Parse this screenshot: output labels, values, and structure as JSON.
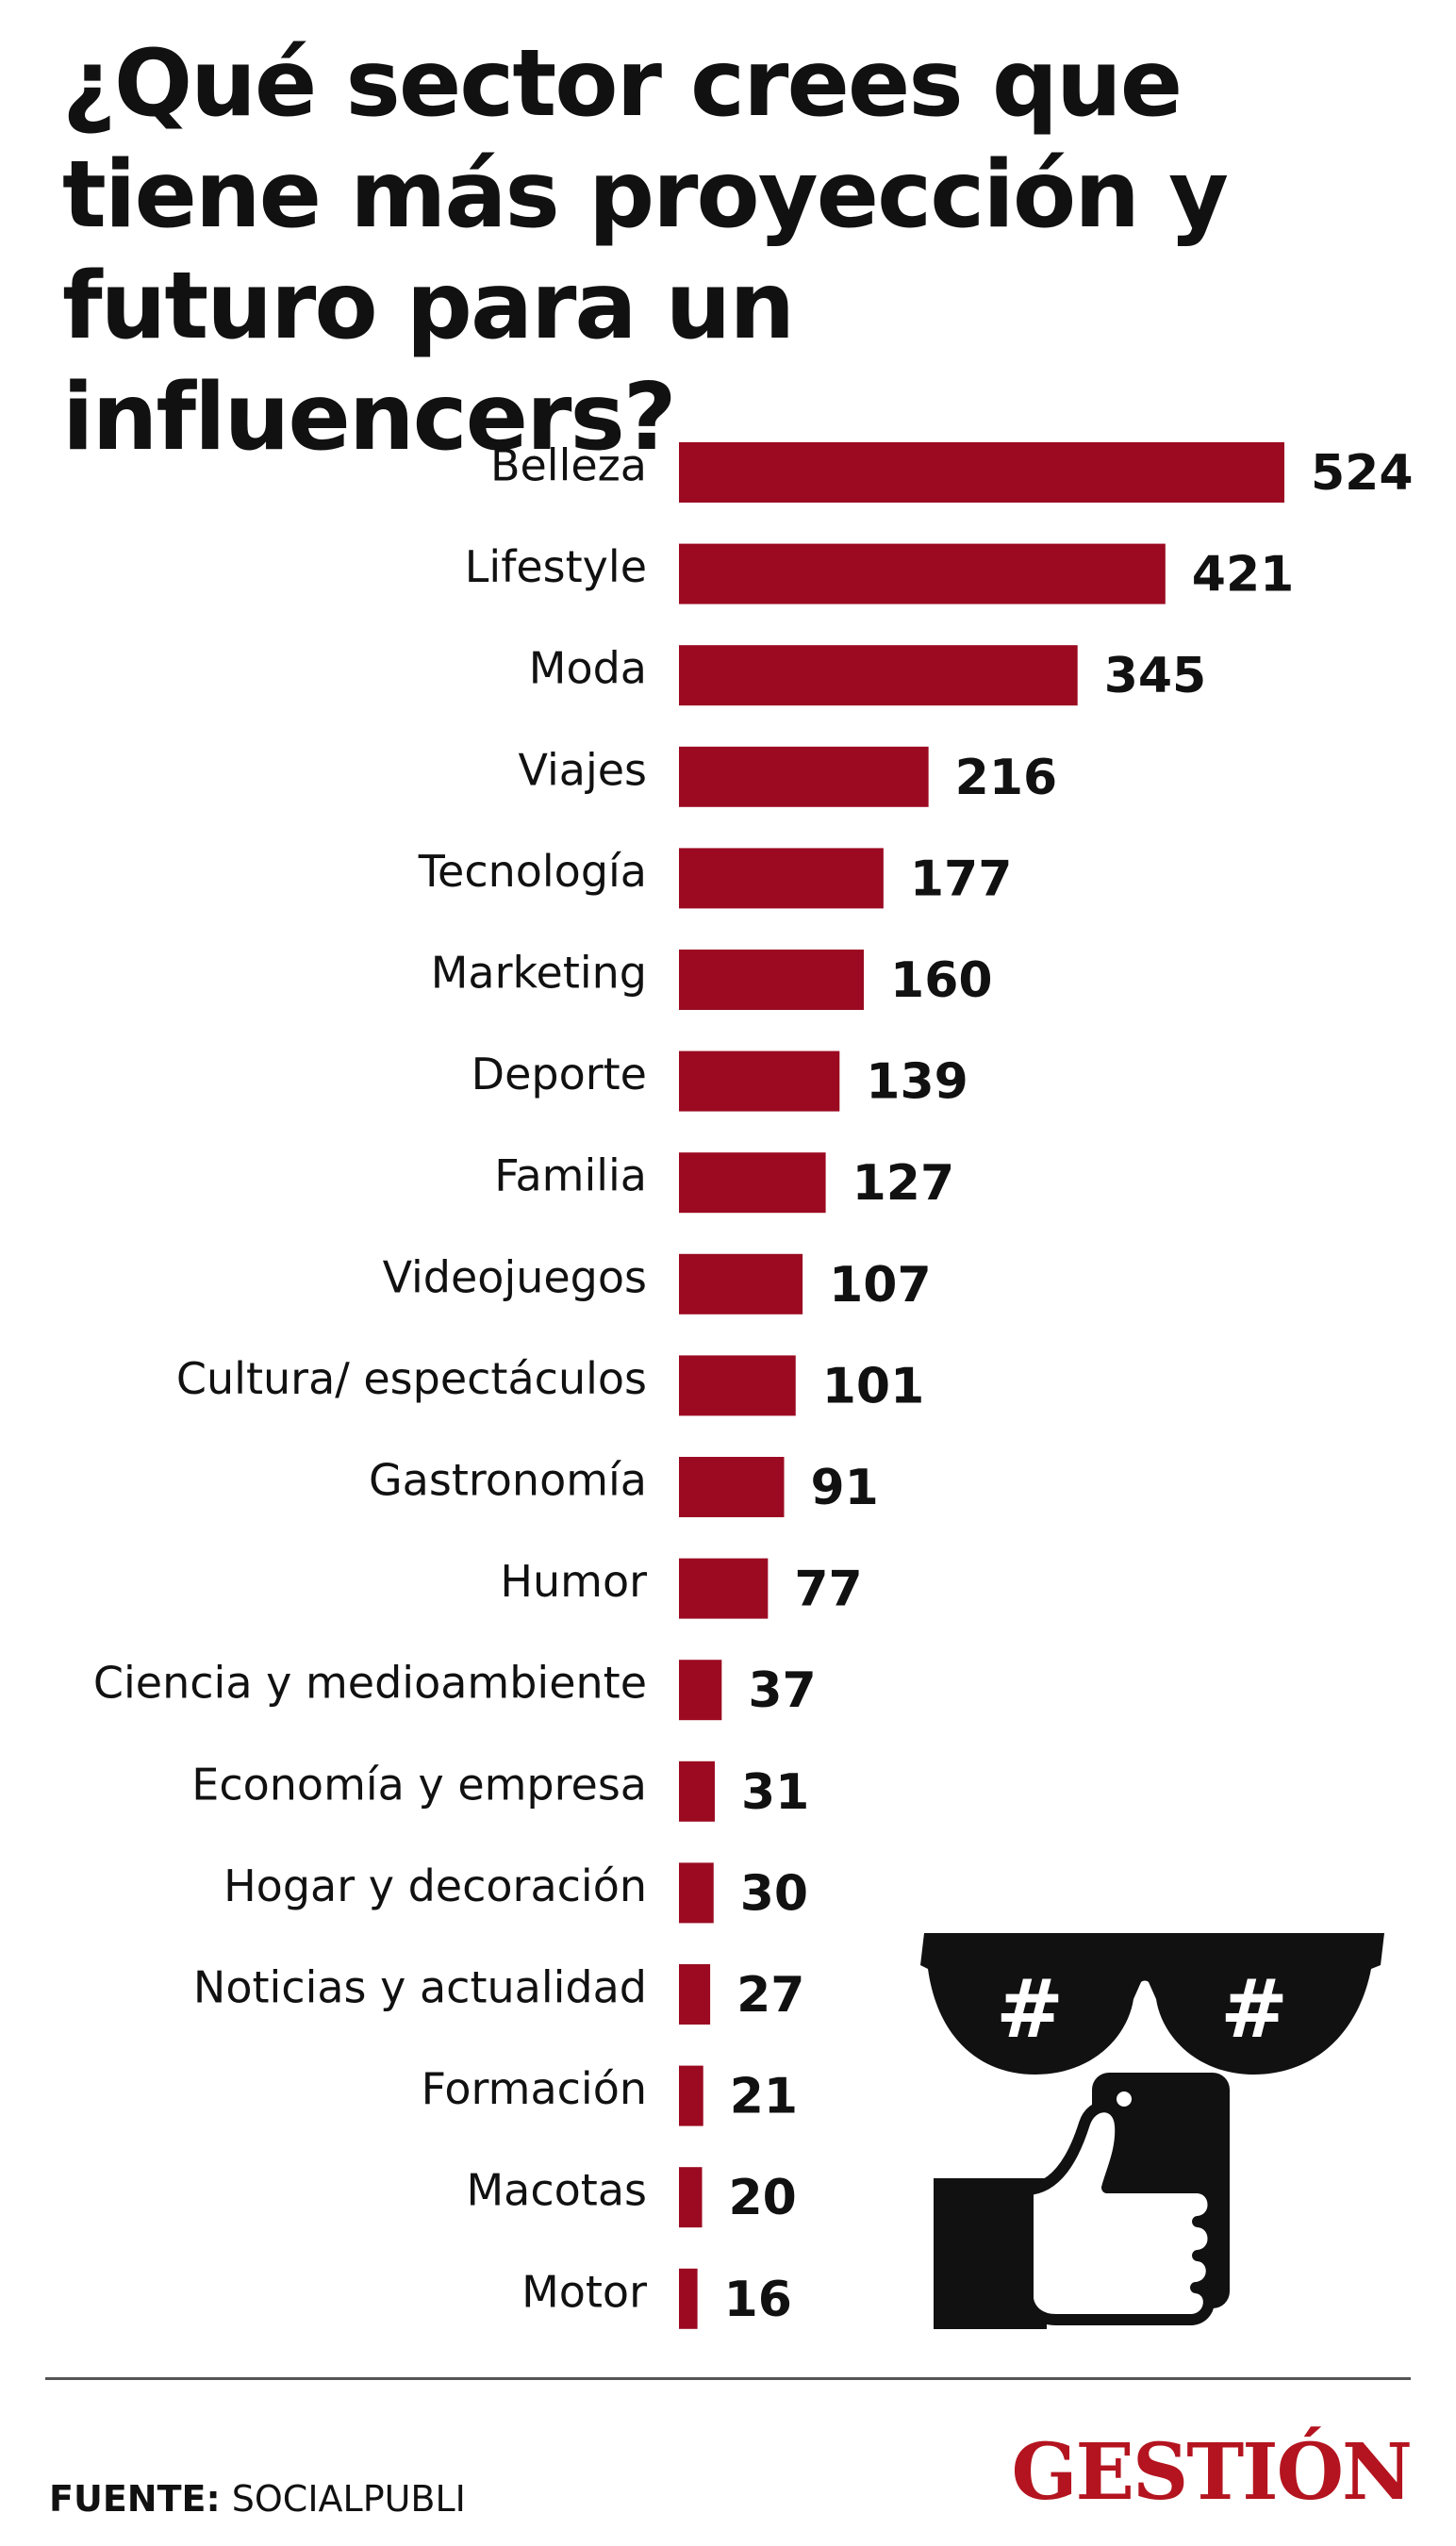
{
  "title": "¿Qué sector crees que tiene más proyección y futuro para un influencers?",
  "colors": {
    "bar": "#9b0a21",
    "brand": "#b4141f",
    "text": "#111111"
  },
  "chart_data": {
    "type": "bar",
    "orientation": "horizontal",
    "categories": [
      "Belleza",
      "Lifestyle",
      "Moda",
      "Viajes",
      "Tecnología",
      "Marketing",
      "Deporte",
      "Familia",
      "Videojuegos",
      "Cultura/ espectáculos",
      "Gastronomía",
      "Humor",
      "Ciencia y medioambiente",
      "Economía y empresa",
      "Hogar y decoración",
      "Noticias y actualidad",
      "Formación",
      "Macotas",
      "Motor"
    ],
    "values": [
      524,
      421,
      345,
      216,
      177,
      160,
      139,
      127,
      107,
      101,
      91,
      77,
      37,
      31,
      30,
      27,
      21,
      20,
      16
    ],
    "title": "¿Qué sector crees que tiene más proyección y futuro para un influencers?",
    "xlabel": "",
    "ylabel": "",
    "xlim": [
      0,
      524
    ],
    "grid": false,
    "legend": "none"
  },
  "source": {
    "label": "FUENTE:",
    "text": "SOCIALPUBLI"
  },
  "brand": "GESTIÓN",
  "illustration": {
    "icons": [
      "sunglasses-icon",
      "thumbs-up-phone-icon"
    ],
    "glyph": "#"
  }
}
